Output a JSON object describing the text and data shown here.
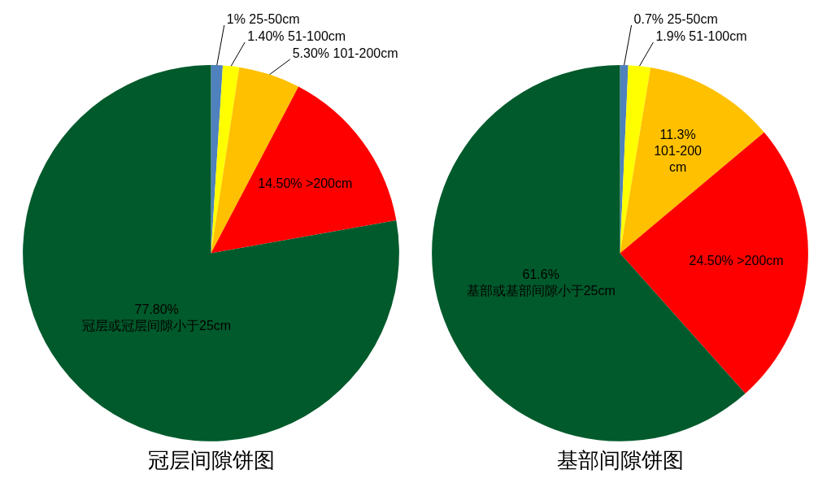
{
  "chart_data": [
    {
      "type": "pie",
      "title": "冠层间隙饼图",
      "categories": [
        "25-50cm",
        "51-100cm",
        "101-200cm",
        ">200cm",
        "冠层或冠层间隙小于25cm"
      ],
      "values": [
        1,
        1.4,
        5.3,
        14.5,
        77.8
      ],
      "value_labels": [
        "1%",
        "1.40%",
        "5.30%",
        "14.50%",
        "77.80%"
      ],
      "colors": [
        "#4f81bd",
        "#ffff00",
        "#ffc000",
        "#ff0000",
        "#005a2b"
      ],
      "legend": false
    },
    {
      "type": "pie",
      "title": "基部间隙饼图",
      "categories": [
        "25-50cm",
        "51-100cm",
        "101-200cm",
        ">200cm",
        "基部或基部间隙小于25cm"
      ],
      "values": [
        0.7,
        1.9,
        11.3,
        24.5,
        61.6
      ],
      "value_labels": [
        "0.7%",
        "1.9%",
        "11.3%",
        "24.50%",
        "61.6%"
      ],
      "colors": [
        "#4f81bd",
        "#ffff00",
        "#ffc000",
        "#ff0000",
        "#005a2b"
      ],
      "legend": false
    }
  ]
}
